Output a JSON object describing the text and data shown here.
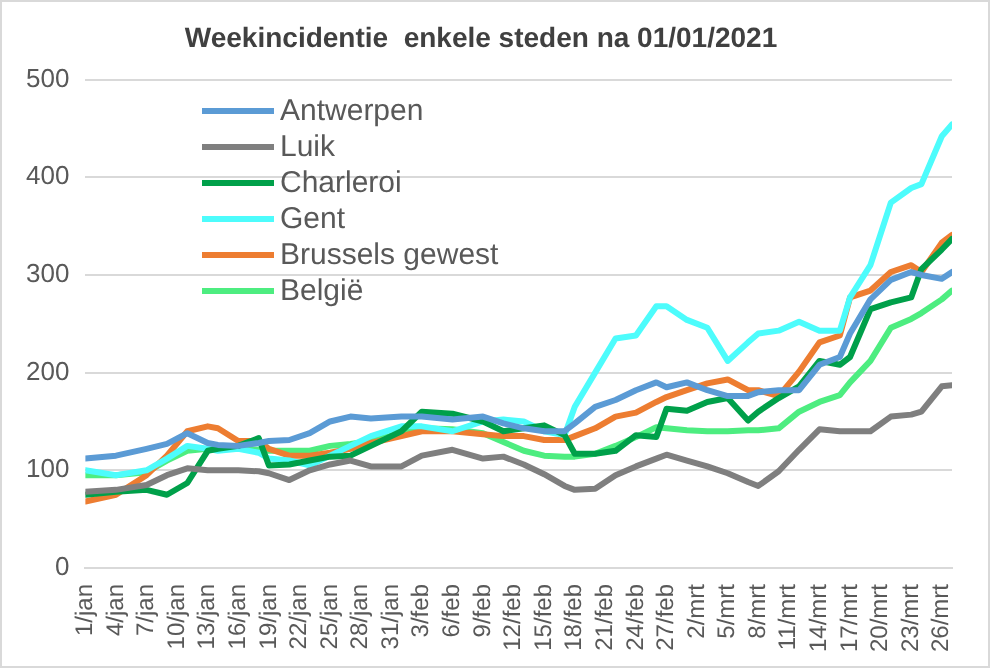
{
  "chart_data": {
    "type": "line",
    "title": "Weekincidentie  enkele steden na 01/01/2021",
    "x": [
      "--01-01",
      "--01-04",
      "--01-07",
      "--01-09",
      "--01-11",
      "--01-13",
      "--01-14",
      "--01-16",
      "--01-18",
      "--01-19",
      "--01-21",
      "--01-23",
      "--01-25",
      "--01-27",
      "--01-29",
      "--02-01",
      "--02-03",
      "--02-06",
      "--02-09",
      "--02-11",
      "--02-13",
      "--02-15",
      "--02-17",
      "--02-18",
      "--02-20",
      "--02-22",
      "--02-24",
      "--02-26",
      "--02-27",
      "--03-01",
      "--03-03",
      "--03-05",
      "--03-07",
      "--03-08",
      "--03-10",
      "--03-12",
      "--03-14",
      "--03-16",
      "--03-17",
      "--03-19",
      "--03-21",
      "--03-23",
      "--03-24",
      "--03-26",
      "--03-27"
    ],
    "series": [
      {
        "name": "Antwerpen",
        "color": "#5b9bd5",
        "values": [
          112,
          115,
          122,
          127,
          138,
          128,
          126,
          125,
          128,
          130,
          131,
          138,
          150,
          155,
          153,
          155,
          155,
          152,
          155,
          148,
          143,
          140,
          140,
          148,
          165,
          172,
          182,
          190,
          185,
          190,
          182,
          176,
          176,
          180,
          182,
          182,
          208,
          216,
          240,
          275,
          295,
          303,
          300,
          296,
          303
        ]
      },
      {
        "name": "Luik",
        "color": "#7f7f7f",
        "values": [
          78,
          80,
          85,
          95,
          102,
          100,
          100,
          100,
          99,
          97,
          90,
          100,
          106,
          110,
          104,
          104,
          115,
          121,
          112,
          114,
          106,
          96,
          84,
          80,
          81,
          95,
          104,
          112,
          116,
          110,
          104,
          97,
          88,
          84,
          99,
          121,
          142,
          140,
          140,
          140,
          155,
          157,
          160,
          186,
          187
        ]
      },
      {
        "name": "Charleroi",
        "color": "#00a04a",
        "values": [
          75,
          78,
          80,
          75,
          87,
          120,
          122,
          125,
          133,
          105,
          106,
          110,
          114,
          115,
          125,
          140,
          160,
          158,
          150,
          140,
          143,
          146,
          136,
          117,
          117,
          120,
          136,
          134,
          163,
          161,
          170,
          174,
          151,
          160,
          174,
          186,
          212,
          208,
          216,
          265,
          272,
          277,
          306,
          326,
          337
        ]
      },
      {
        "name": "Gent",
        "color": "#4dfcfc",
        "values": [
          100,
          95,
          100,
          112,
          125,
          122,
          120,
          122,
          118,
          112,
          110,
          105,
          115,
          125,
          135,
          145,
          145,
          140,
          150,
          152,
          150,
          140,
          136,
          165,
          200,
          235,
          238,
          268,
          268,
          254,
          246,
          212,
          231,
          240,
          243,
          252,
          243,
          243,
          277,
          310,
          374,
          389,
          393,
          442,
          454
        ]
      },
      {
        "name": "Brussels gewest",
        "color": "#ed7d31",
        "values": [
          68,
          75,
          95,
          115,
          140,
          145,
          143,
          130,
          130,
          122,
          115,
          115,
          118,
          122,
          128,
          135,
          140,
          140,
          137,
          135,
          135,
          131,
          131,
          135,
          143,
          155,
          159,
          170,
          175,
          182,
          189,
          193,
          182,
          182,
          176,
          201,
          231,
          238,
          277,
          284,
          303,
          310,
          303,
          333,
          341
        ]
      },
      {
        "name": "België",
        "color": "#4ded80",
        "values": [
          95,
          95,
          98,
          110,
          120,
          122,
          122,
          122,
          121,
          120,
          120,
          120,
          125,
          127,
          130,
          138,
          143,
          142,
          138,
          129,
          120,
          115,
          114,
          114,
          117,
          125,
          134,
          144,
          143,
          141,
          140,
          140,
          141,
          141,
          143,
          160,
          170,
          177,
          190,
          212,
          246,
          255,
          261,
          275,
          284
        ]
      }
    ],
    "xlim": [
      "--01-01",
      "--03-27"
    ],
    "xticks": [
      {
        "value": "--01-01",
        "label": "1/jan"
      },
      {
        "value": "--01-04",
        "label": "4/jan"
      },
      {
        "value": "--01-07",
        "label": "7/jan"
      },
      {
        "value": "--01-10",
        "label": "10/jan"
      },
      {
        "value": "--01-13",
        "label": "13/jan"
      },
      {
        "value": "--01-16",
        "label": "16/jan"
      },
      {
        "value": "--01-19",
        "label": "19/jan"
      },
      {
        "value": "--01-22",
        "label": "22/jan"
      },
      {
        "value": "--01-25",
        "label": "25/jan"
      },
      {
        "value": "--01-28",
        "label": "28/jan"
      },
      {
        "value": "--01-31",
        "label": "31/jan"
      },
      {
        "value": "--02-03",
        "label": "3/feb"
      },
      {
        "value": "--02-06",
        "label": "6/feb"
      },
      {
        "value": "--02-09",
        "label": "9/feb"
      },
      {
        "value": "--02-12",
        "label": "12/feb"
      },
      {
        "value": "--02-15",
        "label": "15/feb"
      },
      {
        "value": "--02-18",
        "label": "18/feb"
      },
      {
        "value": "--02-21",
        "label": "21/feb"
      },
      {
        "value": "--02-24",
        "label": "24/feb"
      },
      {
        "value": "--02-27",
        "label": "27/feb"
      },
      {
        "value": "--03-02",
        "label": "2/mrt"
      },
      {
        "value": "--03-05",
        "label": "5/mrt"
      },
      {
        "value": "--03-08",
        "label": "8/mrt"
      },
      {
        "value": "--03-11",
        "label": "11/mrt"
      },
      {
        "value": "--03-14",
        "label": "14/mrt"
      },
      {
        "value": "--03-17",
        "label": "17/mrt"
      },
      {
        "value": "--03-20",
        "label": "20/mrt"
      },
      {
        "value": "--03-23",
        "label": "23/mrt"
      },
      {
        "value": "--03-26",
        "label": "26/mrt"
      }
    ],
    "ylim": [
      0,
      500
    ],
    "yticks": [
      0,
      100,
      200,
      300,
      400,
      500
    ],
    "grid": "y",
    "legend": "top left",
    "marker": "none",
    "line_style": "solid"
  }
}
